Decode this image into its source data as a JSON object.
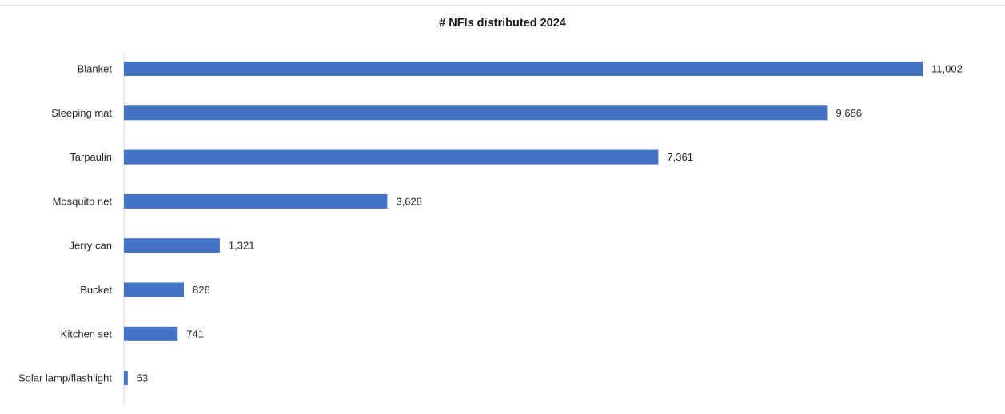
{
  "chart_data": {
    "type": "bar",
    "orientation": "horizontal",
    "title": "# NFIs distributed 2024",
    "categories": [
      "Blanket",
      "Sleeping mat",
      "Tarpaulin",
      "Mosquito net",
      "Jerry can",
      "Bucket",
      "Kitchen set",
      "Solar lamp/flashlight"
    ],
    "values": [
      11002,
      9686,
      7361,
      3628,
      1321,
      826,
      741,
      53
    ],
    "value_labels": [
      "11,002",
      "9,686",
      "7,361",
      "3,628",
      "1,321",
      "826",
      "741",
      "53"
    ],
    "xlim": [
      0,
      11002
    ],
    "grid": false,
    "legend": "none",
    "bar_color": "#4472c4"
  }
}
